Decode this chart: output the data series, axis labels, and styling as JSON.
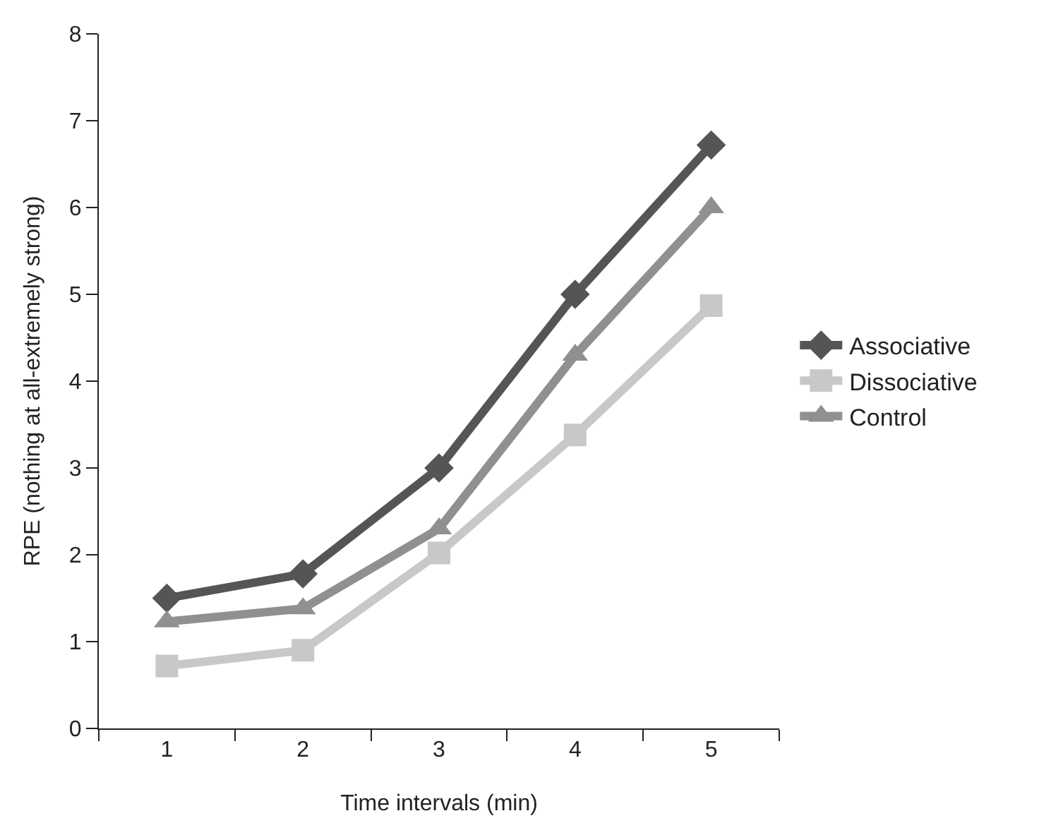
{
  "chart_data": {
    "type": "line",
    "xlabel": "Time intervals (min)",
    "ylabel": "RPE (nothing at all-extremely strong)",
    "categories": [
      "1",
      "2",
      "3",
      "4",
      "5"
    ],
    "series": [
      {
        "name": "Associative",
        "color": "#555555",
        "marker": "diamond",
        "values": [
          1.5,
          1.78,
          3.0,
          5.0,
          6.72
        ]
      },
      {
        "name": "Dissociative",
        "color": "#c8c8c8",
        "marker": "square",
        "values": [
          0.72,
          0.9,
          2.02,
          3.38,
          4.87
        ]
      },
      {
        "name": "Control",
        "color": "#909090",
        "marker": "triangle",
        "values": [
          1.23,
          1.38,
          2.3,
          4.3,
          6.0
        ]
      }
    ],
    "ylim": [
      0,
      8
    ],
    "yticks": [
      0,
      1,
      2,
      3,
      4,
      5,
      6,
      7,
      8
    ],
    "grid": false,
    "legend": "right",
    "line_style": "solid"
  }
}
